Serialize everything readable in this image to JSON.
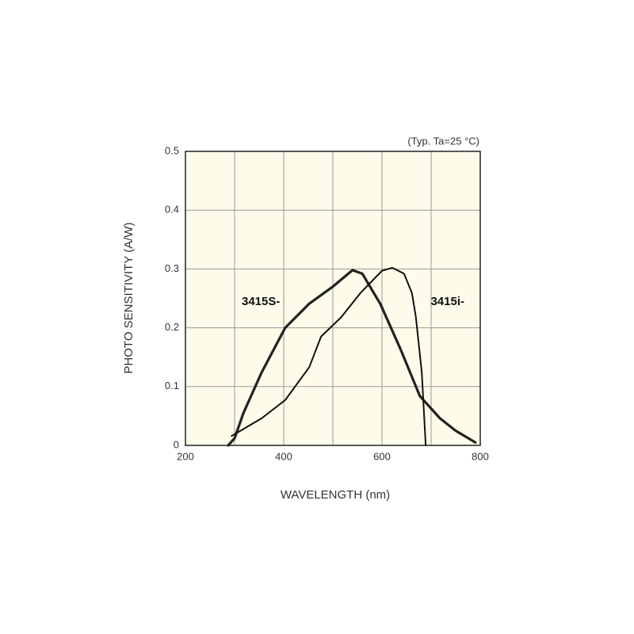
{
  "chart_data": {
    "type": "line",
    "annotation": "(Typ. Ta=25 °C)",
    "xlabel": "WAVELENGTH (nm)",
    "ylabel": "PHOTO SENSITIVITY (A/W)",
    "xlim": [
      200,
      800
    ],
    "ylim": [
      0,
      0.5
    ],
    "xticks": [
      200,
      400,
      600,
      800
    ],
    "minor_xticks": [
      300,
      500,
      700
    ],
    "yticks": [
      0,
      0.1,
      0.2,
      0.3,
      0.4,
      0.5
    ],
    "grid": true,
    "background": "#fdfbe9",
    "series": [
      {
        "name": "3415S-",
        "color": "#222222",
        "width": 3.2,
        "x": [
          287,
          300,
          318,
          355,
          403,
          452,
          500,
          540,
          560,
          597,
          637,
          677,
          718,
          750,
          790
        ],
        "values": [
          0,
          0.012,
          0.055,
          0.124,
          0.2,
          0.241,
          0.27,
          0.298,
          0.292,
          0.24,
          0.165,
          0.084,
          0.046,
          0.025,
          0.005
        ]
      },
      {
        "name": "3415i-",
        "color": "#111111",
        "width": 2,
        "x": [
          294,
          355,
          403,
          452,
          476,
          517,
          556,
          600,
          621,
          645,
          661,
          669,
          681,
          689
        ],
        "values": [
          0.016,
          0.046,
          0.077,
          0.133,
          0.185,
          0.218,
          0.259,
          0.297,
          0.302,
          0.292,
          0.259,
          0.218,
          0.124,
          0
        ]
      }
    ]
  }
}
